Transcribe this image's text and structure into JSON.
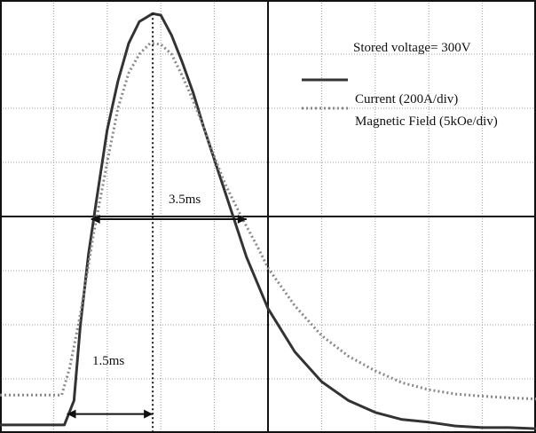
{
  "chart_data": {
    "type": "line",
    "annotations": {
      "stored_voltage": "Stored voltage= 300V",
      "width_3_5": "3.5ms",
      "rise_1_5": "1.5ms"
    },
    "grid": true,
    "x_divisions": 10,
    "y_divisions": 8,
    "xlim": [
      0,
      10
    ],
    "ylim": [
      0,
      8
    ],
    "series": [
      {
        "name": "Current (200A/div)",
        "style": "solid",
        "color": "#333333",
        "points": [
          [
            0,
            0.15
          ],
          [
            0.3,
            0.15
          ],
          [
            0.6,
            0.15
          ],
          [
            1.0,
            0.15
          ],
          [
            1.2,
            0.15
          ],
          [
            1.38,
            0.6
          ],
          [
            1.5,
            2.0
          ],
          [
            1.65,
            3.3
          ],
          [
            1.8,
            4.3
          ],
          [
            2.0,
            5.6
          ],
          [
            2.2,
            6.5
          ],
          [
            2.4,
            7.2
          ],
          [
            2.6,
            7.6
          ],
          [
            2.85,
            7.75
          ],
          [
            3.0,
            7.72
          ],
          [
            3.2,
            7.35
          ],
          [
            3.4,
            6.85
          ],
          [
            3.6,
            6.3
          ],
          [
            3.8,
            5.65
          ],
          [
            4.0,
            5.05
          ],
          [
            4.3,
            4.15
          ],
          [
            4.6,
            3.25
          ],
          [
            5.0,
            2.3
          ],
          [
            5.5,
            1.5
          ],
          [
            6.0,
            0.95
          ],
          [
            6.5,
            0.6
          ],
          [
            7.0,
            0.38
          ],
          [
            7.5,
            0.25
          ],
          [
            8.0,
            0.2
          ],
          [
            8.5,
            0.13
          ],
          [
            9.0,
            0.1
          ],
          [
            9.5,
            0.1
          ],
          [
            10.0,
            0.08
          ]
        ]
      },
      {
        "name": "Magnetic Field (5kOe/div)",
        "style": "dotted",
        "color": "#888888",
        "points": [
          [
            0,
            0.7
          ],
          [
            0.5,
            0.7
          ],
          [
            1.0,
            0.7
          ],
          [
            1.15,
            0.7
          ],
          [
            1.3,
            1.2
          ],
          [
            1.5,
            2.2
          ],
          [
            1.75,
            3.7
          ],
          [
            2.0,
            5.0
          ],
          [
            2.2,
            6.0
          ],
          [
            2.4,
            6.65
          ],
          [
            2.6,
            7.0
          ],
          [
            2.8,
            7.2
          ],
          [
            3.0,
            7.18
          ],
          [
            3.2,
            7.0
          ],
          [
            3.4,
            6.6
          ],
          [
            3.6,
            6.15
          ],
          [
            3.8,
            5.65
          ],
          [
            4.0,
            5.1
          ],
          [
            4.2,
            4.6
          ],
          [
            4.5,
            4.0
          ],
          [
            4.8,
            3.45
          ],
          [
            5.0,
            3.05
          ],
          [
            5.5,
            2.35
          ],
          [
            6.0,
            1.8
          ],
          [
            6.5,
            1.42
          ],
          [
            7.0,
            1.15
          ],
          [
            7.5,
            0.93
          ],
          [
            8.0,
            0.8
          ],
          [
            8.5,
            0.72
          ],
          [
            9.0,
            0.68
          ],
          [
            9.5,
            0.65
          ],
          [
            10.0,
            0.63
          ]
        ]
      }
    ]
  }
}
